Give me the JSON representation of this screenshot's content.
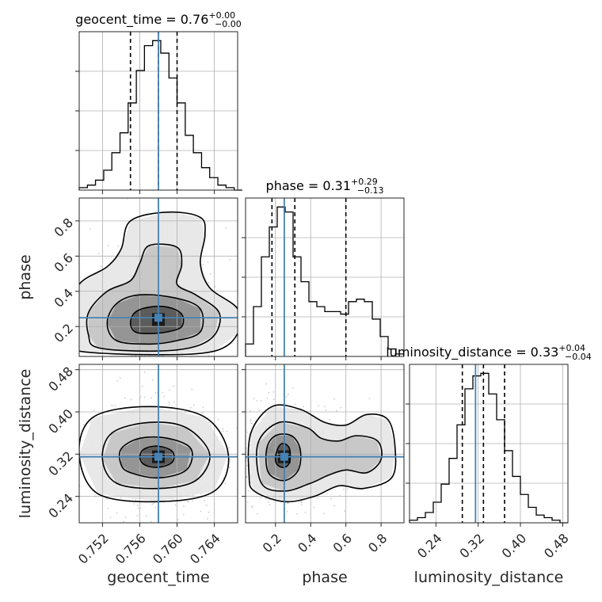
{
  "chart_data": {
    "type": "corner",
    "parameters": [
      {
        "name": "geocent_time",
        "truth": 0.758,
        "median": 0.758,
        "q16": 0.755,
        "q84": 0.76,
        "range": [
          0.7495,
          0.7665
        ],
        "ticks": [
          0.752,
          0.756,
          0.76,
          0.764
        ],
        "tick_labels": [
          "0.752",
          "0.756",
          "0.760",
          "0.764"
        ],
        "title": "geocent_time = 0.76",
        "err_plus": "+0.00",
        "err_minus": "−0.00"
      },
      {
        "name": "phase",
        "truth": 0.25,
        "median": 0.31,
        "q16": 0.18,
        "q84": 0.6,
        "range": [
          0.03,
          0.93
        ],
        "ticks": [
          0.2,
          0.4,
          0.6,
          0.8
        ],
        "tick_labels": [
          "0.2",
          "0.4",
          "0.6",
          "0.8"
        ],
        "title": "phase = 0.31",
        "err_plus": "+0.29",
        "err_minus": "−0.13"
      },
      {
        "name": "luminosity_distance",
        "truth": 0.315,
        "median": 0.33,
        "q16": 0.29,
        "q84": 0.37,
        "range": [
          0.19,
          0.49
        ],
        "ticks": [
          0.24,
          0.32,
          0.4,
          0.48
        ],
        "tick_labels": [
          "0.24",
          "0.32",
          "0.40",
          "0.48"
        ],
        "title": "luminosity_distance = 0.33",
        "err_plus": "+0.04",
        "err_minus": "−0.04"
      }
    ],
    "histograms": [
      {
        "param": "geocent_time",
        "bin_edges": [
          0.7495,
          0.75038,
          0.75125,
          0.75213,
          0.753,
          0.75388,
          0.75475,
          0.75563,
          0.7565,
          0.75738,
          0.75825,
          0.75913,
          0.76,
          0.76088,
          0.76175,
          0.76263,
          0.7635,
          0.76438,
          0.76525,
          0.76613,
          0.767
        ],
        "counts": [
          1,
          2,
          4,
          8,
          15,
          23,
          35,
          48,
          58,
          60,
          55,
          45,
          35,
          22,
          15,
          9,
          5,
          2,
          1,
          0
        ]
      },
      {
        "param": "phase",
        "bin_edges": [
          0.03,
          0.075,
          0.12,
          0.165,
          0.21,
          0.255,
          0.3,
          0.345,
          0.39,
          0.435,
          0.48,
          0.525,
          0.57,
          0.615,
          0.66,
          0.705,
          0.75,
          0.795,
          0.84,
          0.885,
          0.93
        ],
        "counts": [
          5,
          20,
          40,
          52,
          60,
          58,
          40,
          30,
          22,
          20,
          18,
          18,
          17,
          22,
          23,
          22,
          15,
          8,
          3,
          1
        ]
      },
      {
        "param": "luminosity_distance",
        "bin_edges": [
          0.19,
          0.205,
          0.22,
          0.235,
          0.25,
          0.265,
          0.28,
          0.295,
          0.31,
          0.325,
          0.34,
          0.355,
          0.37,
          0.385,
          0.4,
          0.415,
          0.43,
          0.445,
          0.46,
          0.475,
          0.49
        ],
        "counts": [
          1,
          2,
          4,
          8,
          15,
          25,
          38,
          52,
          57,
          58,
          50,
          40,
          28,
          18,
          11,
          6,
          3,
          2,
          1,
          0
        ]
      }
    ],
    "pairs": [
      {
        "x": "geocent_time",
        "y": "phase",
        "peak": [
          0.758,
          0.24
        ],
        "contours": [
          [
            [
              0.7555,
              0.17
            ],
            [
              0.757,
              0.16
            ],
            [
              0.759,
              0.17
            ],
            [
              0.7605,
              0.2
            ],
            [
              0.7605,
              0.27
            ],
            [
              0.759,
              0.31
            ],
            [
              0.757,
              0.31
            ],
            [
              0.7555,
              0.28
            ],
            [
              0.755,
              0.22
            ]
          ],
          [
            [
              0.7535,
              0.12
            ],
            [
              0.757,
              0.1
            ],
            [
              0.76,
              0.12
            ],
            [
              0.7625,
              0.17
            ],
            [
              0.7625,
              0.3
            ],
            [
              0.76,
              0.36
            ],
            [
              0.756,
              0.38
            ],
            [
              0.7535,
              0.33
            ],
            [
              0.7525,
              0.22
            ]
          ],
          [
            [
              0.7515,
              0.08
            ],
            [
              0.757,
              0.06
            ],
            [
              0.7615,
              0.08
            ],
            [
              0.764,
              0.15
            ],
            [
              0.7645,
              0.28
            ],
            [
              0.762,
              0.38
            ],
            [
              0.76,
              0.44
            ],
            [
              0.7605,
              0.55
            ],
            [
              0.76,
              0.65
            ],
            [
              0.757,
              0.66
            ],
            [
              0.756,
              0.56
            ],
            [
              0.755,
              0.46
            ],
            [
              0.7525,
              0.4
            ],
            [
              0.7505,
              0.28
            ],
            [
              0.7505,
              0.15
            ]
          ],
          [
            [
              0.7495,
              0.06
            ],
            [
              0.7575,
              0.04
            ],
            [
              0.764,
              0.06
            ],
            [
              0.7665,
              0.16
            ],
            [
              0.7665,
              0.3
            ],
            [
              0.7635,
              0.42
            ],
            [
              0.7625,
              0.56
            ],
            [
              0.763,
              0.72
            ],
            [
              0.7625,
              0.82
            ],
            [
              0.759,
              0.85
            ],
            [
              0.755,
              0.8
            ],
            [
              0.754,
              0.64
            ],
            [
              0.7525,
              0.54
            ],
            [
              0.7495,
              0.44
            ],
            [
              0.7485,
              0.26
            ],
            [
              0.7485,
              0.12
            ]
          ]
        ]
      },
      {
        "x": "geocent_time",
        "y": "luminosity_distance",
        "peak": [
          0.758,
          0.315
        ],
        "contours": [
          [
            [
              0.7565,
              0.3
            ],
            [
              0.758,
              0.295
            ],
            [
              0.7595,
              0.305
            ],
            [
              0.7595,
              0.325
            ],
            [
              0.758,
              0.335
            ],
            [
              0.7565,
              0.33
            ],
            [
              0.756,
              0.315
            ]
          ],
          [
            [
              0.755,
              0.285
            ],
            [
              0.758,
              0.275
            ],
            [
              0.761,
              0.29
            ],
            [
              0.7615,
              0.33
            ],
            [
              0.759,
              0.35
            ],
            [
              0.756,
              0.35
            ],
            [
              0.754,
              0.33
            ],
            [
              0.754,
              0.3
            ]
          ],
          [
            [
              0.7535,
              0.265
            ],
            [
              0.758,
              0.255
            ],
            [
              0.762,
              0.27
            ],
            [
              0.7635,
              0.32
            ],
            [
              0.761,
              0.37
            ],
            [
              0.757,
              0.38
            ],
            [
              0.753,
              0.36
            ],
            [
              0.752,
              0.31
            ]
          ],
          [
            [
              0.7515,
              0.245
            ],
            [
              0.758,
              0.23
            ],
            [
              0.764,
              0.25
            ],
            [
              0.7655,
              0.32
            ],
            [
              0.763,
              0.39
            ],
            [
              0.757,
              0.41
            ],
            [
              0.751,
              0.39
            ],
            [
              0.7495,
              0.32
            ]
          ]
        ]
      },
      {
        "x": "phase",
        "y": "luminosity_distance",
        "peak": [
          0.25,
          0.315
        ],
        "contours": [
          [
            [
              0.21,
              0.3
            ],
            [
              0.25,
              0.295
            ],
            [
              0.28,
              0.305
            ],
            [
              0.28,
              0.33
            ],
            [
              0.25,
              0.34
            ],
            [
              0.22,
              0.335
            ],
            [
              0.2,
              0.315
            ]
          ],
          [
            [
              0.16,
              0.285
            ],
            [
              0.25,
              0.27
            ],
            [
              0.33,
              0.29
            ],
            [
              0.34,
              0.33
            ],
            [
              0.29,
              0.355
            ],
            [
              0.2,
              0.355
            ],
            [
              0.15,
              0.33
            ]
          ],
          [
            [
              0.12,
              0.265
            ],
            [
              0.25,
              0.25
            ],
            [
              0.4,
              0.265
            ],
            [
              0.5,
              0.28
            ],
            [
              0.6,
              0.29
            ],
            [
              0.72,
              0.285
            ],
            [
              0.8,
              0.31
            ],
            [
              0.78,
              0.345
            ],
            [
              0.66,
              0.355
            ],
            [
              0.56,
              0.345
            ],
            [
              0.46,
              0.35
            ],
            [
              0.38,
              0.37
            ],
            [
              0.22,
              0.38
            ],
            [
              0.1,
              0.34
            ]
          ],
          [
            [
              0.08,
              0.25
            ],
            [
              0.25,
              0.23
            ],
            [
              0.42,
              0.24
            ],
            [
              0.56,
              0.26
            ],
            [
              0.7,
              0.255
            ],
            [
              0.86,
              0.275
            ],
            [
              0.88,
              0.33
            ],
            [
              0.84,
              0.385
            ],
            [
              0.72,
              0.395
            ],
            [
              0.6,
              0.375
            ],
            [
              0.48,
              0.38
            ],
            [
              0.34,
              0.405
            ],
            [
              0.18,
              0.41
            ],
            [
              0.06,
              0.36
            ],
            [
              0.05,
              0.28
            ]
          ]
        ]
      }
    ]
  }
}
